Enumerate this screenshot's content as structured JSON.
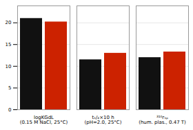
{
  "chart_data": {
    "type": "bar",
    "categories": [
      "logKGdL\n(0.15 M NaCl, 25°C)",
      "t₁/₂×10 h\n(pH=2.0, 25°C)",
      "³¹⁰r₁ₚ\n(hum. plas., 0.47 T)"
    ],
    "series": [
      {
        "color": "#111111",
        "values": [
          21.0,
          11.5,
          12.0
        ]
      },
      {
        "color": "#cc2200",
        "values": [
          20.2,
          13.0,
          13.3
        ]
      }
    ],
    "ylim": [
      0,
      23.9
    ],
    "yticks": [
      0,
      5,
      10,
      15,
      20
    ],
    "grid": true
  }
}
